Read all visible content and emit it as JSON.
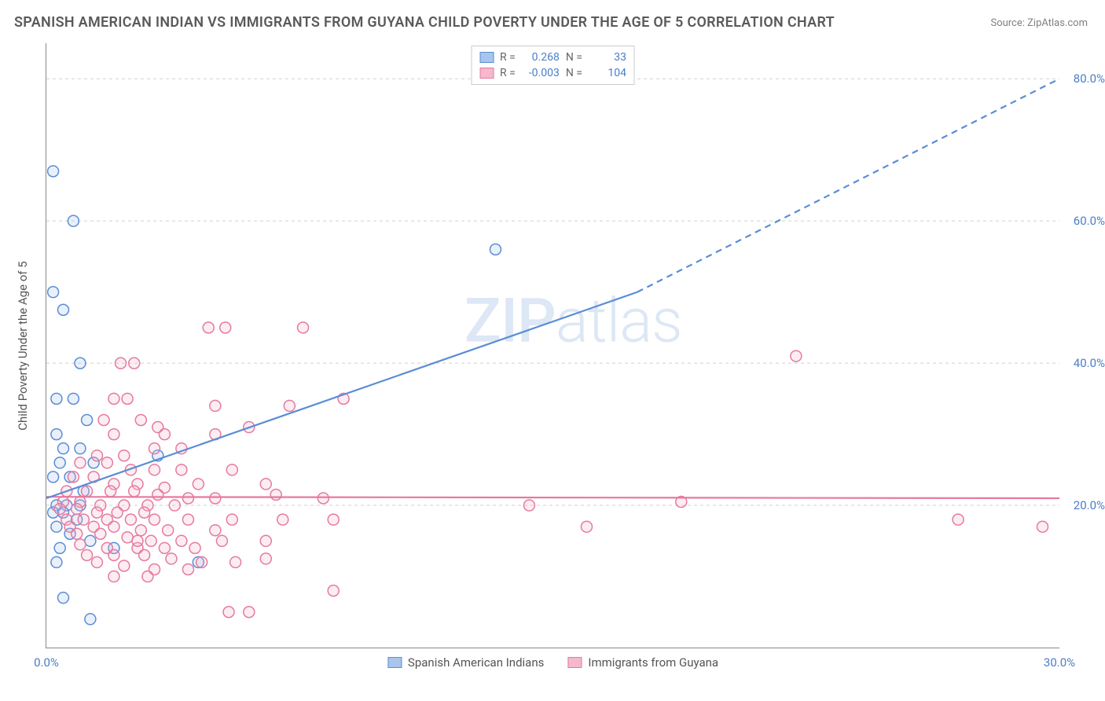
{
  "title": "SPANISH AMERICAN INDIAN VS IMMIGRANTS FROM GUYANA CHILD POVERTY UNDER THE AGE OF 5 CORRELATION CHART",
  "source": "Source: ZipAtlas.com",
  "y_axis_title": "Child Poverty Under the Age of 5",
  "watermark": "ZIPatlas",
  "chart": {
    "type": "scatter",
    "xlim": [
      0,
      30
    ],
    "ylim": [
      0,
      85
    ],
    "x_ticks": [
      0,
      30
    ],
    "x_tick_labels": [
      "0.0%",
      "30.0%"
    ],
    "y_ticks": [
      20,
      40,
      60,
      80
    ],
    "y_tick_labels": [
      "20.0%",
      "40.0%",
      "60.0%",
      "80.0%"
    ],
    "background_color": "#ffffff",
    "grid_color": "#d0d0d0",
    "grid_dash": "4,4",
    "axis_color": "#888888",
    "marker_radius": 7,
    "marker_stroke_width": 1.5,
    "marker_fill_opacity": 0.25,
    "series": [
      {
        "name": "Spanish American Indians",
        "color_stroke": "#5b8dd6",
        "color_fill": "#a8c5ec",
        "R": "0.268",
        "N": "33",
        "trend": {
          "x1": 0,
          "y1": 21,
          "x2": 17.5,
          "y2": 50,
          "x2_ext": 30,
          "y2_ext": 80,
          "solid_until_x": 17.5,
          "width": 2.2
        },
        "points": [
          [
            0.2,
            67
          ],
          [
            0.8,
            60
          ],
          [
            0.2,
            50
          ],
          [
            0.5,
            47.5
          ],
          [
            1.0,
            40
          ],
          [
            0.3,
            35
          ],
          [
            0.8,
            35
          ],
          [
            1.2,
            32
          ],
          [
            0.3,
            30
          ],
          [
            0.5,
            28
          ],
          [
            1.0,
            28
          ],
          [
            0.4,
            26
          ],
          [
            1.4,
            26
          ],
          [
            3.3,
            27
          ],
          [
            0.2,
            24
          ],
          [
            0.7,
            24
          ],
          [
            1.1,
            22
          ],
          [
            0.3,
            20
          ],
          [
            0.6,
            20
          ],
          [
            1.0,
            20
          ],
          [
            0.2,
            19
          ],
          [
            0.5,
            19
          ],
          [
            0.9,
            18
          ],
          [
            0.3,
            17
          ],
          [
            0.7,
            16
          ],
          [
            1.3,
            15
          ],
          [
            0.4,
            14
          ],
          [
            2.0,
            14
          ],
          [
            0.3,
            12
          ],
          [
            4.5,
            12
          ],
          [
            0.5,
            7
          ],
          [
            1.3,
            4
          ],
          [
            13.3,
            56
          ]
        ]
      },
      {
        "name": "Immigrants from Guyana",
        "color_stroke": "#e67a9e",
        "color_fill": "#f5b8cd",
        "R": "-0.003",
        "N": "104",
        "trend": {
          "x1": 0,
          "y1": 21.2,
          "x2": 30,
          "y2": 21.0,
          "width": 2.2
        },
        "points": [
          [
            4.8,
            45
          ],
          [
            5.3,
            45
          ],
          [
            7.6,
            45
          ],
          [
            2.2,
            40
          ],
          [
            2.6,
            40
          ],
          [
            22.2,
            41
          ],
          [
            2.0,
            35
          ],
          [
            2.4,
            35
          ],
          [
            5.0,
            34
          ],
          [
            7.2,
            34
          ],
          [
            1.7,
            32
          ],
          [
            2.8,
            32
          ],
          [
            3.3,
            31
          ],
          [
            8.8,
            35
          ],
          [
            2.0,
            30
          ],
          [
            3.5,
            30
          ],
          [
            5.0,
            30
          ],
          [
            6.0,
            31
          ],
          [
            3.2,
            28
          ],
          [
            4.0,
            28
          ],
          [
            1.5,
            27
          ],
          [
            2.3,
            27
          ],
          [
            1.0,
            26
          ],
          [
            1.8,
            26
          ],
          [
            2.5,
            25
          ],
          [
            3.2,
            25
          ],
          [
            4.0,
            25
          ],
          [
            5.5,
            25
          ],
          [
            0.8,
            24
          ],
          [
            1.4,
            24
          ],
          [
            2.0,
            23
          ],
          [
            2.7,
            23
          ],
          [
            3.5,
            22.5
          ],
          [
            4.5,
            23
          ],
          [
            6.5,
            23
          ],
          [
            0.6,
            22
          ],
          [
            1.2,
            22
          ],
          [
            1.9,
            22
          ],
          [
            2.6,
            22
          ],
          [
            3.3,
            21.5
          ],
          [
            4.2,
            21
          ],
          [
            5.0,
            21
          ],
          [
            6.8,
            21.5
          ],
          [
            8.2,
            21
          ],
          [
            0.5,
            20.5
          ],
          [
            1.0,
            20.5
          ],
          [
            1.6,
            20
          ],
          [
            2.3,
            20
          ],
          [
            3.0,
            20
          ],
          [
            3.8,
            20
          ],
          [
            0.4,
            19.5
          ],
          [
            0.9,
            19.5
          ],
          [
            1.5,
            19
          ],
          [
            2.1,
            19
          ],
          [
            2.9,
            19
          ],
          [
            14.3,
            20
          ],
          [
            18.8,
            20.5
          ],
          [
            27.0,
            18
          ],
          [
            29.5,
            17
          ],
          [
            0.6,
            18
          ],
          [
            1.1,
            18
          ],
          [
            1.8,
            18
          ],
          [
            2.5,
            18
          ],
          [
            3.2,
            18
          ],
          [
            4.2,
            18
          ],
          [
            5.5,
            18
          ],
          [
            7.0,
            18
          ],
          [
            8.5,
            18
          ],
          [
            16.0,
            17
          ],
          [
            0.7,
            17
          ],
          [
            1.4,
            17
          ],
          [
            2.0,
            17
          ],
          [
            2.8,
            16.5
          ],
          [
            3.6,
            16.5
          ],
          [
            5.0,
            16.5
          ],
          [
            0.9,
            16
          ],
          [
            1.6,
            16
          ],
          [
            2.4,
            15.5
          ],
          [
            3.1,
            15
          ],
          [
            4.0,
            15
          ],
          [
            5.2,
            15
          ],
          [
            6.5,
            15
          ],
          [
            1.0,
            14.5
          ],
          [
            1.8,
            14
          ],
          [
            2.7,
            14
          ],
          [
            3.5,
            14
          ],
          [
            4.4,
            14
          ],
          [
            1.2,
            13
          ],
          [
            2.0,
            13
          ],
          [
            2.9,
            13
          ],
          [
            3.7,
            12.5
          ],
          [
            4.6,
            12
          ],
          [
            5.6,
            12
          ],
          [
            1.5,
            12
          ],
          [
            2.3,
            11.5
          ],
          [
            3.2,
            11
          ],
          [
            4.2,
            11
          ],
          [
            6.5,
            12.5
          ],
          [
            2.0,
            10
          ],
          [
            3.0,
            10
          ],
          [
            8.5,
            8
          ],
          [
            5.4,
            5
          ],
          [
            6.0,
            5
          ],
          [
            2.7,
            15
          ]
        ]
      }
    ]
  },
  "legend_bottom": [
    {
      "label": "Spanish American Indians",
      "swatch_fill": "#a8c5ec",
      "swatch_stroke": "#5b8dd6"
    },
    {
      "label": "Immigrants from Guyana",
      "swatch_fill": "#f5b8cd",
      "swatch_stroke": "#e67a9e"
    }
  ]
}
